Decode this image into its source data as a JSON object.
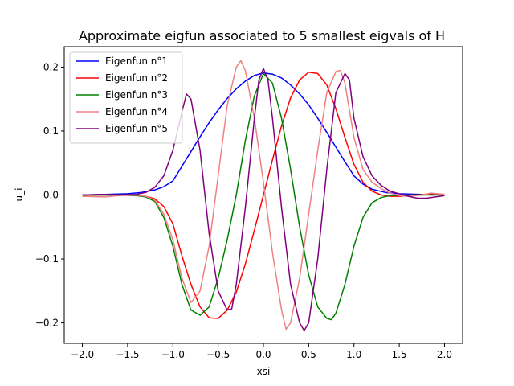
{
  "chart_data": {
    "type": "line",
    "title": "Approximate eigfun associated to 5 smallest eigvals of H",
    "xlabel": "xsi",
    "ylabel": "u_i",
    "xlim": [
      -2.2,
      2.2
    ],
    "ylim": [
      -0.232,
      0.232
    ],
    "xticks": [
      "−2.0",
      "−1.5",
      "−1.0",
      "−0.5",
      "0.0",
      "0.5",
      "1.0",
      "1.5",
      "2.0"
    ],
    "xtick_values": [
      -2.0,
      -1.5,
      -1.0,
      -0.5,
      0.0,
      0.5,
      1.0,
      1.5,
      2.0
    ],
    "yticks": [
      "−0.2",
      "−0.1",
      "0.0",
      "0.1",
      "0.2"
    ],
    "ytick_values": [
      -0.2,
      -0.1,
      0.0,
      0.1,
      0.2
    ],
    "grid": false,
    "legend_position": "upper-left",
    "series": [
      {
        "name": "Eigenfun n°1",
        "color": "#0000ff",
        "points": [
          [
            -2.0,
            0.0
          ],
          [
            -1.75,
            0.001
          ],
          [
            -1.5,
            0.002
          ],
          [
            -1.35,
            0.004
          ],
          [
            -1.2,
            0.008
          ],
          [
            -1.1,
            0.013
          ],
          [
            -1.0,
            0.022
          ],
          [
            -0.9,
            0.045
          ],
          [
            -0.8,
            0.068
          ],
          [
            -0.7,
            0.091
          ],
          [
            -0.6,
            0.113
          ],
          [
            -0.5,
            0.133
          ],
          [
            -0.4,
            0.151
          ],
          [
            -0.3,
            0.166
          ],
          [
            -0.2,
            0.178
          ],
          [
            -0.1,
            0.187
          ],
          [
            0.0,
            0.191
          ],
          [
            0.1,
            0.189
          ],
          [
            0.2,
            0.183
          ],
          [
            0.3,
            0.172
          ],
          [
            0.4,
            0.158
          ],
          [
            0.5,
            0.141
          ],
          [
            0.6,
            0.12
          ],
          [
            0.7,
            0.098
          ],
          [
            0.8,
            0.075
          ],
          [
            0.9,
            0.052
          ],
          [
            1.0,
            0.03
          ],
          [
            1.1,
            0.017
          ],
          [
            1.2,
            0.009
          ],
          [
            1.35,
            0.004
          ],
          [
            1.5,
            0.002
          ],
          [
            1.75,
            0.001
          ],
          [
            2.0,
            0.0
          ]
        ]
      },
      {
        "name": "Eigenfun n°2",
        "color": "#ff0000",
        "points": [
          [
            -2.0,
            0.0
          ],
          [
            -1.6,
            0.0
          ],
          [
            -1.4,
            -0.001
          ],
          [
            -1.3,
            -0.002
          ],
          [
            -1.2,
            -0.006
          ],
          [
            -1.1,
            -0.018
          ],
          [
            -1.0,
            -0.045
          ],
          [
            -0.9,
            -0.095
          ],
          [
            -0.8,
            -0.14
          ],
          [
            -0.7,
            -0.175
          ],
          [
            -0.6,
            -0.192
          ],
          [
            -0.5,
            -0.193
          ],
          [
            -0.4,
            -0.18
          ],
          [
            -0.3,
            -0.152
          ],
          [
            -0.2,
            -0.108
          ],
          [
            -0.1,
            -0.055
          ],
          [
            0.0,
            0.0
          ],
          [
            0.1,
            0.055
          ],
          [
            0.2,
            0.108
          ],
          [
            0.3,
            0.152
          ],
          [
            0.4,
            0.18
          ],
          [
            0.5,
            0.192
          ],
          [
            0.6,
            0.19
          ],
          [
            0.7,
            0.172
          ],
          [
            0.8,
            0.135
          ],
          [
            0.9,
            0.09
          ],
          [
            1.0,
            0.048
          ],
          [
            1.1,
            0.02
          ],
          [
            1.2,
            0.006
          ],
          [
            1.3,
            0.0
          ],
          [
            1.4,
            -0.002
          ],
          [
            1.5,
            -0.002
          ],
          [
            1.7,
            0.0
          ],
          [
            1.85,
            0.002
          ],
          [
            2.0,
            0.001
          ]
        ]
      },
      {
        "name": "Eigenfun n°3",
        "color": "#008000",
        "points": [
          [
            -2.0,
            0.0
          ],
          [
            -1.6,
            0.0
          ],
          [
            -1.4,
            -0.001
          ],
          [
            -1.3,
            -0.003
          ],
          [
            -1.2,
            -0.01
          ],
          [
            -1.1,
            -0.035
          ],
          [
            -1.0,
            -0.08
          ],
          [
            -0.9,
            -0.14
          ],
          [
            -0.8,
            -0.18
          ],
          [
            -0.7,
            -0.188
          ],
          [
            -0.6,
            -0.175
          ],
          [
            -0.5,
            -0.13
          ],
          [
            -0.4,
            -0.07
          ],
          [
            -0.3,
            0.0
          ],
          [
            -0.2,
            0.085
          ],
          [
            -0.1,
            0.155
          ],
          [
            0.0,
            0.19
          ],
          [
            0.1,
            0.175
          ],
          [
            0.2,
            0.12
          ],
          [
            0.3,
            0.04
          ],
          [
            0.4,
            -0.05
          ],
          [
            0.5,
            -0.125
          ],
          [
            0.6,
            -0.175
          ],
          [
            0.7,
            -0.193
          ],
          [
            0.75,
            -0.195
          ],
          [
            0.8,
            -0.185
          ],
          [
            0.9,
            -0.14
          ],
          [
            1.0,
            -0.08
          ],
          [
            1.1,
            -0.035
          ],
          [
            1.2,
            -0.012
          ],
          [
            1.3,
            -0.004
          ],
          [
            1.4,
            -0.001
          ],
          [
            1.6,
            0.0
          ],
          [
            2.0,
            0.0
          ]
        ]
      },
      {
        "name": "Eigenfun n°4",
        "color": "#f08080",
        "points": [
          [
            -2.0,
            -0.002
          ],
          [
            -1.75,
            -0.003
          ],
          [
            -1.6,
            -0.001
          ],
          [
            -1.4,
            0.0
          ],
          [
            -1.3,
            -0.002
          ],
          [
            -1.2,
            -0.008
          ],
          [
            -1.1,
            -0.03
          ],
          [
            -1.0,
            -0.07
          ],
          [
            -0.9,
            -0.13
          ],
          [
            -0.8,
            -0.168
          ],
          [
            -0.7,
            -0.15
          ],
          [
            -0.6,
            -0.08
          ],
          [
            -0.5,
            0.03
          ],
          [
            -0.4,
            0.14
          ],
          [
            -0.3,
            0.2
          ],
          [
            -0.25,
            0.21
          ],
          [
            -0.2,
            0.195
          ],
          [
            -0.1,
            0.12
          ],
          [
            0.0,
            0.02
          ],
          [
            0.1,
            -0.09
          ],
          [
            0.2,
            -0.18
          ],
          [
            0.25,
            -0.21
          ],
          [
            0.3,
            -0.2
          ],
          [
            0.4,
            -0.13
          ],
          [
            0.5,
            -0.03
          ],
          [
            0.6,
            0.07
          ],
          [
            0.7,
            0.16
          ],
          [
            0.8,
            0.193
          ],
          [
            0.85,
            0.195
          ],
          [
            0.9,
            0.175
          ],
          [
            1.0,
            0.09
          ],
          [
            1.1,
            0.04
          ],
          [
            1.2,
            0.02
          ],
          [
            1.3,
            0.01
          ],
          [
            1.4,
            0.003
          ],
          [
            1.5,
            -0.001
          ],
          [
            1.6,
            -0.002
          ],
          [
            1.75,
            0.0
          ],
          [
            1.85,
            0.003
          ],
          [
            2.0,
            0.001
          ]
        ]
      },
      {
        "name": "Eigenfun n°5",
        "color": "#800080",
        "points": [
          [
            -2.0,
            0.0
          ],
          [
            -1.8,
            0.001
          ],
          [
            -1.6,
            0.0
          ],
          [
            -1.4,
            0.001
          ],
          [
            -1.3,
            0.004
          ],
          [
            -1.2,
            0.012
          ],
          [
            -1.1,
            0.03
          ],
          [
            -1.0,
            0.07
          ],
          [
            -0.9,
            0.13
          ],
          [
            -0.85,
            0.158
          ],
          [
            -0.8,
            0.15
          ],
          [
            -0.7,
            0.07
          ],
          [
            -0.6,
            -0.06
          ],
          [
            -0.5,
            -0.15
          ],
          [
            -0.4,
            -0.18
          ],
          [
            -0.35,
            -0.178
          ],
          [
            -0.3,
            -0.14
          ],
          [
            -0.2,
            -0.02
          ],
          [
            -0.1,
            0.12
          ],
          [
            -0.05,
            0.18
          ],
          [
            0.0,
            0.198
          ],
          [
            0.05,
            0.18
          ],
          [
            0.1,
            0.12
          ],
          [
            0.2,
            -0.02
          ],
          [
            0.3,
            -0.14
          ],
          [
            0.4,
            -0.2
          ],
          [
            0.45,
            -0.212
          ],
          [
            0.5,
            -0.2
          ],
          [
            0.6,
            -0.1
          ],
          [
            0.7,
            0.04
          ],
          [
            0.8,
            0.16
          ],
          [
            0.9,
            0.19
          ],
          [
            0.95,
            0.18
          ],
          [
            1.0,
            0.12
          ],
          [
            1.1,
            0.06
          ],
          [
            1.2,
            0.03
          ],
          [
            1.3,
            0.015
          ],
          [
            1.4,
            0.006
          ],
          [
            1.5,
            0.002
          ],
          [
            1.6,
            -0.002
          ],
          [
            1.7,
            -0.005
          ],
          [
            1.8,
            -0.005
          ],
          [
            1.9,
            -0.003
          ],
          [
            2.0,
            -0.001
          ]
        ]
      }
    ]
  }
}
